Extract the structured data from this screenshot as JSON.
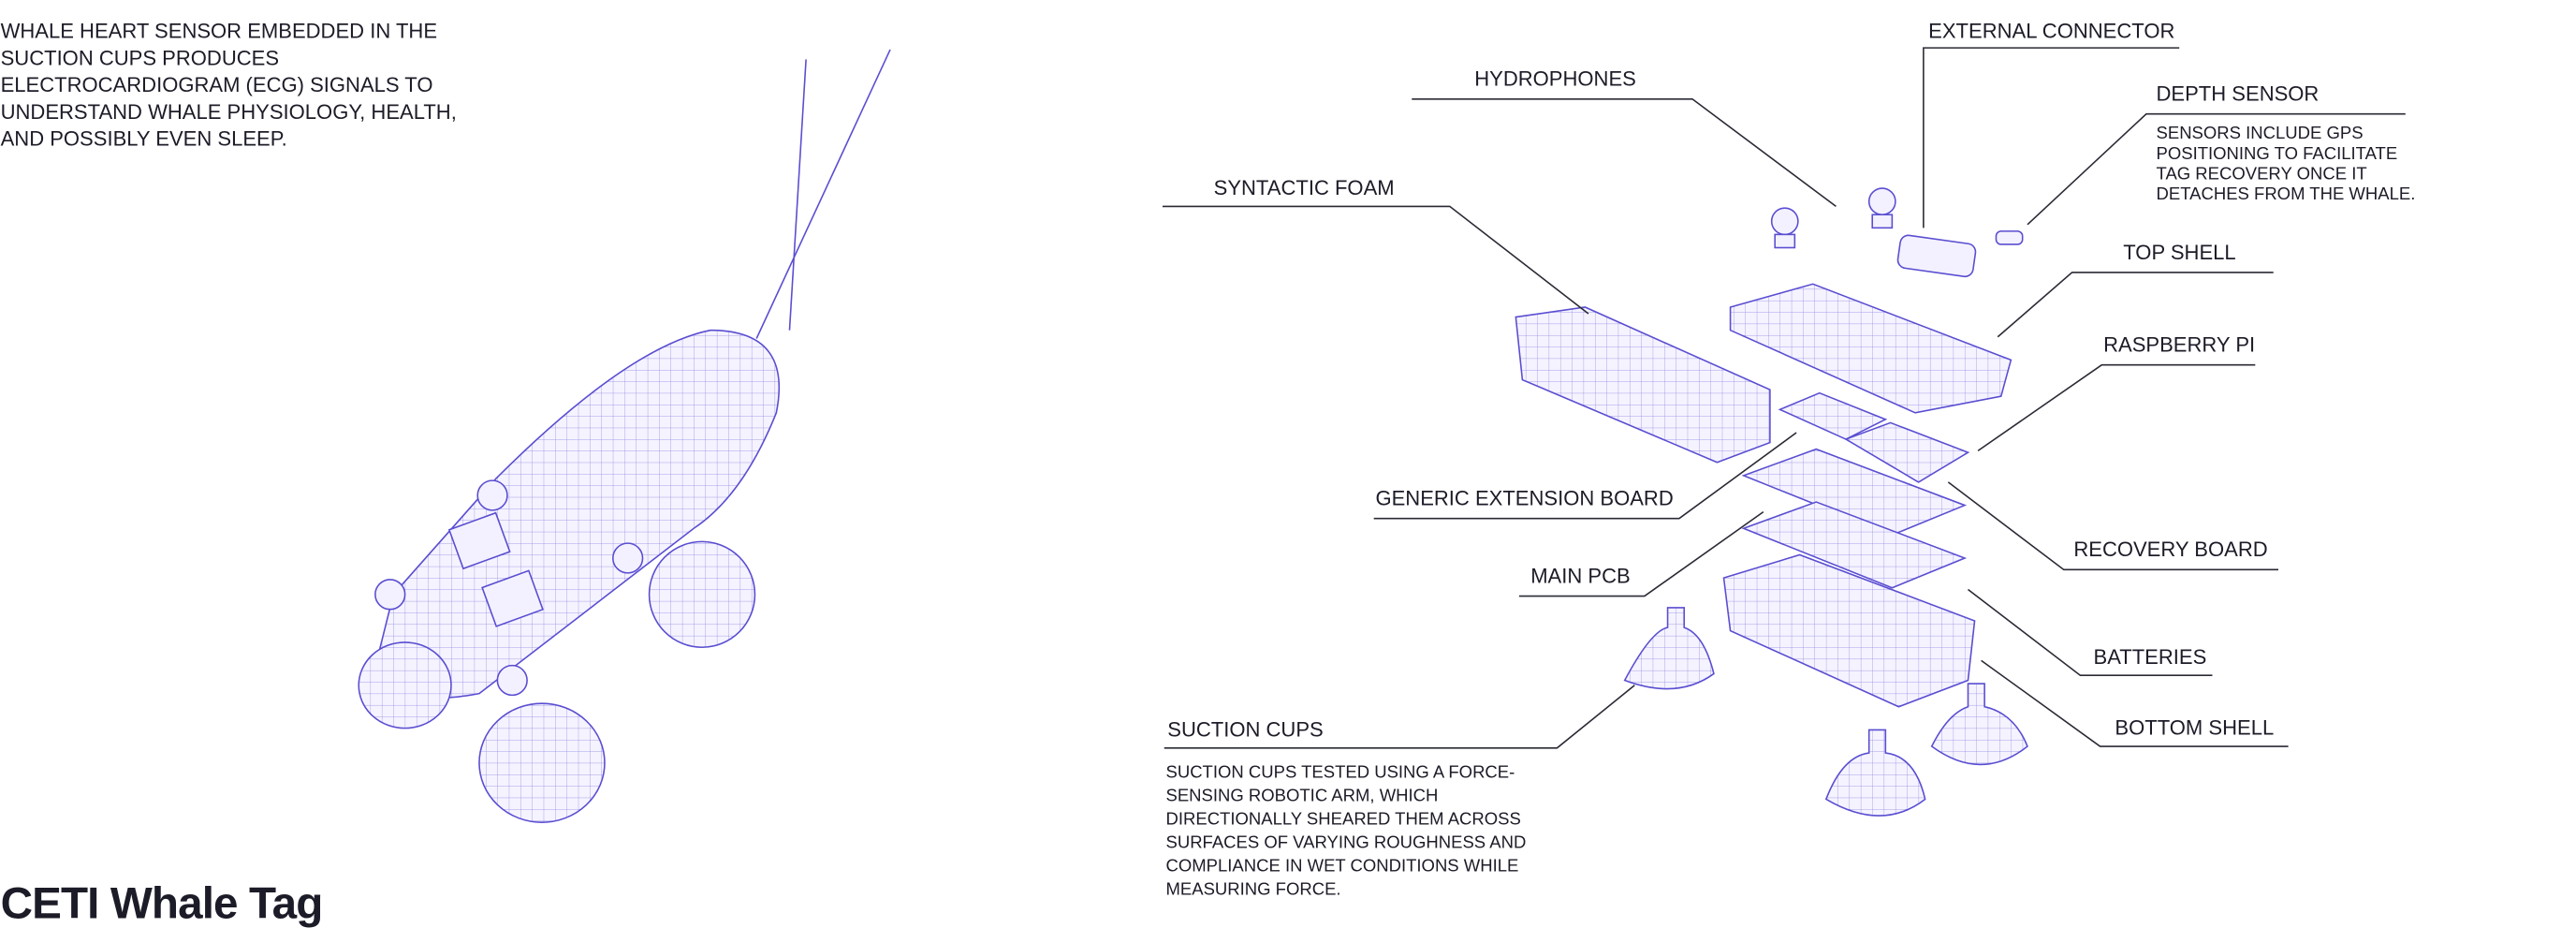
{
  "header": {
    "title": "CETI Whale Tag"
  },
  "intro": [
    "WHALE HEART SENSOR EMBEDDED IN THE",
    "SUCTION CUPS PRODUCES",
    "ELECTROCARDIOGRAM (ECG) SIGNALS TO",
    "UNDERSTAND WHALE PHYSIOLOGY, HEALTH,",
    "AND POSSIBLY EVEN SLEEP."
  ],
  "parts": [
    {
      "label": "EXTERNAL CONNECTOR"
    },
    {
      "label": "HYDROPHONES"
    },
    {
      "label": "DEPTH SENSOR",
      "description": [
        "SENSORS INCLUDE GPS",
        "POSITIONING TO FACILITATE",
        "TAG RECOVERY ONCE IT",
        "DETACHES FROM THE WHALE."
      ]
    },
    {
      "label": "SYNTACTIC FOAM"
    },
    {
      "label": "TOP SHELL"
    },
    {
      "label": "RASPBERRY PI"
    },
    {
      "label": "GENERIC EXTENSION BOARD"
    },
    {
      "label": "RECOVERY BOARD"
    },
    {
      "label": "MAIN PCB"
    },
    {
      "label": "BATTERIES"
    },
    {
      "label": "SUCTION CUPS",
      "description": [
        "SUCTION CUPS TESTED USING A FORCE-",
        "SENSING ROBOTIC ARM, WHICH",
        "DIRECTIONALLY SHEARED THEM ACROSS",
        "SURFACES OF VARYING ROUGHNESS AND",
        "COMPLIANCE IN WET CONDITIONS WHILE",
        "MEASURING FORCE."
      ]
    },
    {
      "label": "BOTTOM SHELL"
    }
  ]
}
